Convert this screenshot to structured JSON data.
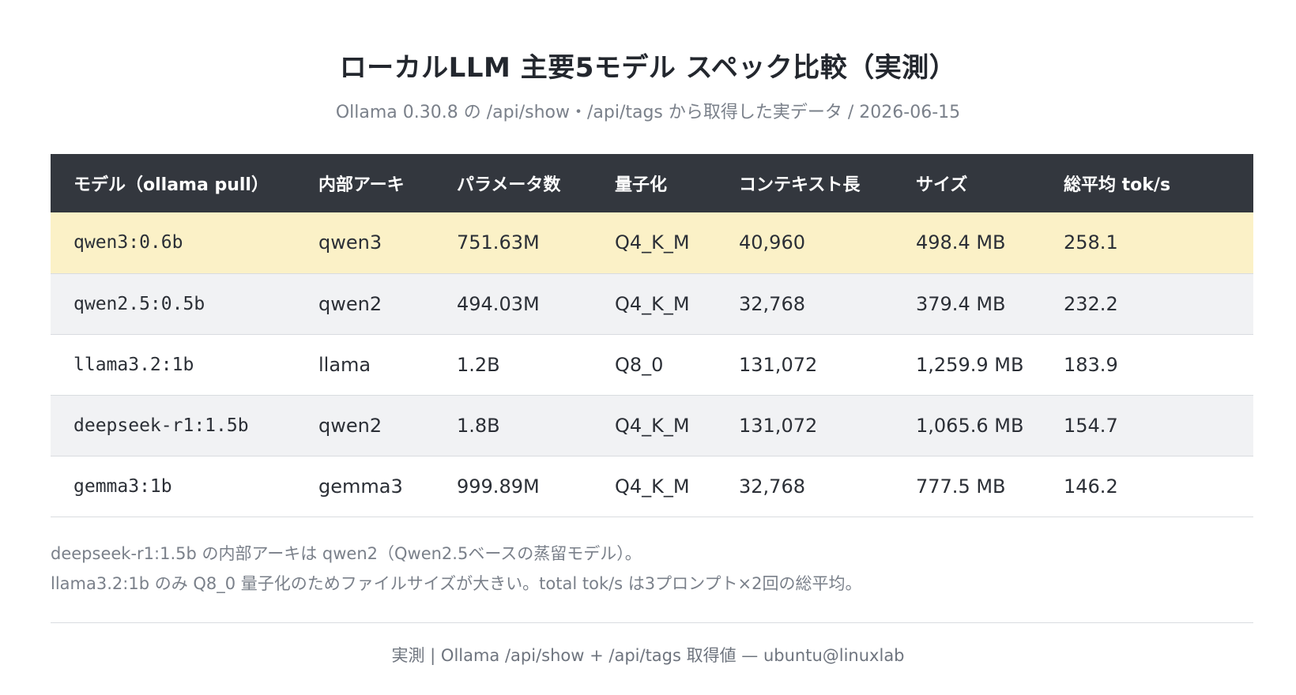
{
  "title": "ローカルLLM 主要5モデル スペック比較（実測）",
  "subtitle": "Ollama 0.30.8 の /api/show・/api/tags から取得した実データ / 2026-06-15",
  "table": {
    "headers": [
      "モデル（ollama pull）",
      "内部アーキ",
      "パラメータ数",
      "量子化",
      "コンテキスト長",
      "サイズ",
      "総平均 tok/s"
    ],
    "rows": [
      [
        "qwen3:0.6b",
        "qwen3",
        "751.63M",
        "Q4_K_M",
        "40,960",
        "498.4 MB",
        "258.1"
      ],
      [
        "qwen2.5:0.5b",
        "qwen2",
        "494.03M",
        "Q4_K_M",
        "32,768",
        "379.4 MB",
        "232.2"
      ],
      [
        "llama3.2:1b",
        "llama",
        "1.2B",
        "Q8_0",
        "131,072",
        "1,259.9 MB",
        "183.9"
      ],
      [
        "deepseek-r1:1.5b",
        "qwen2",
        "1.8B",
        "Q4_K_M",
        "131,072",
        "1,065.6 MB",
        "154.7"
      ],
      [
        "gemma3:1b",
        "gemma3",
        "999.89M",
        "Q4_K_M",
        "32,768",
        "777.5 MB",
        "146.2"
      ]
    ]
  },
  "notes": [
    "deepseek-r1:1.5b の内部アーキは qwen2（Qwen2.5ベースの蒸留モデル）。",
    "llama3.2:1b のみ Q8_0 量子化のためファイルサイズが大きい。total tok/s は3プロンプト×2回の総平均。"
  ],
  "footer": "実測 | Ollama /api/show + /api/tags 取得値 — ubuntu@linuxlab",
  "colors": {
    "header_bg": "#33373e",
    "highlight_row": "#fbf1c7",
    "alt_row": "#f1f2f4"
  }
}
